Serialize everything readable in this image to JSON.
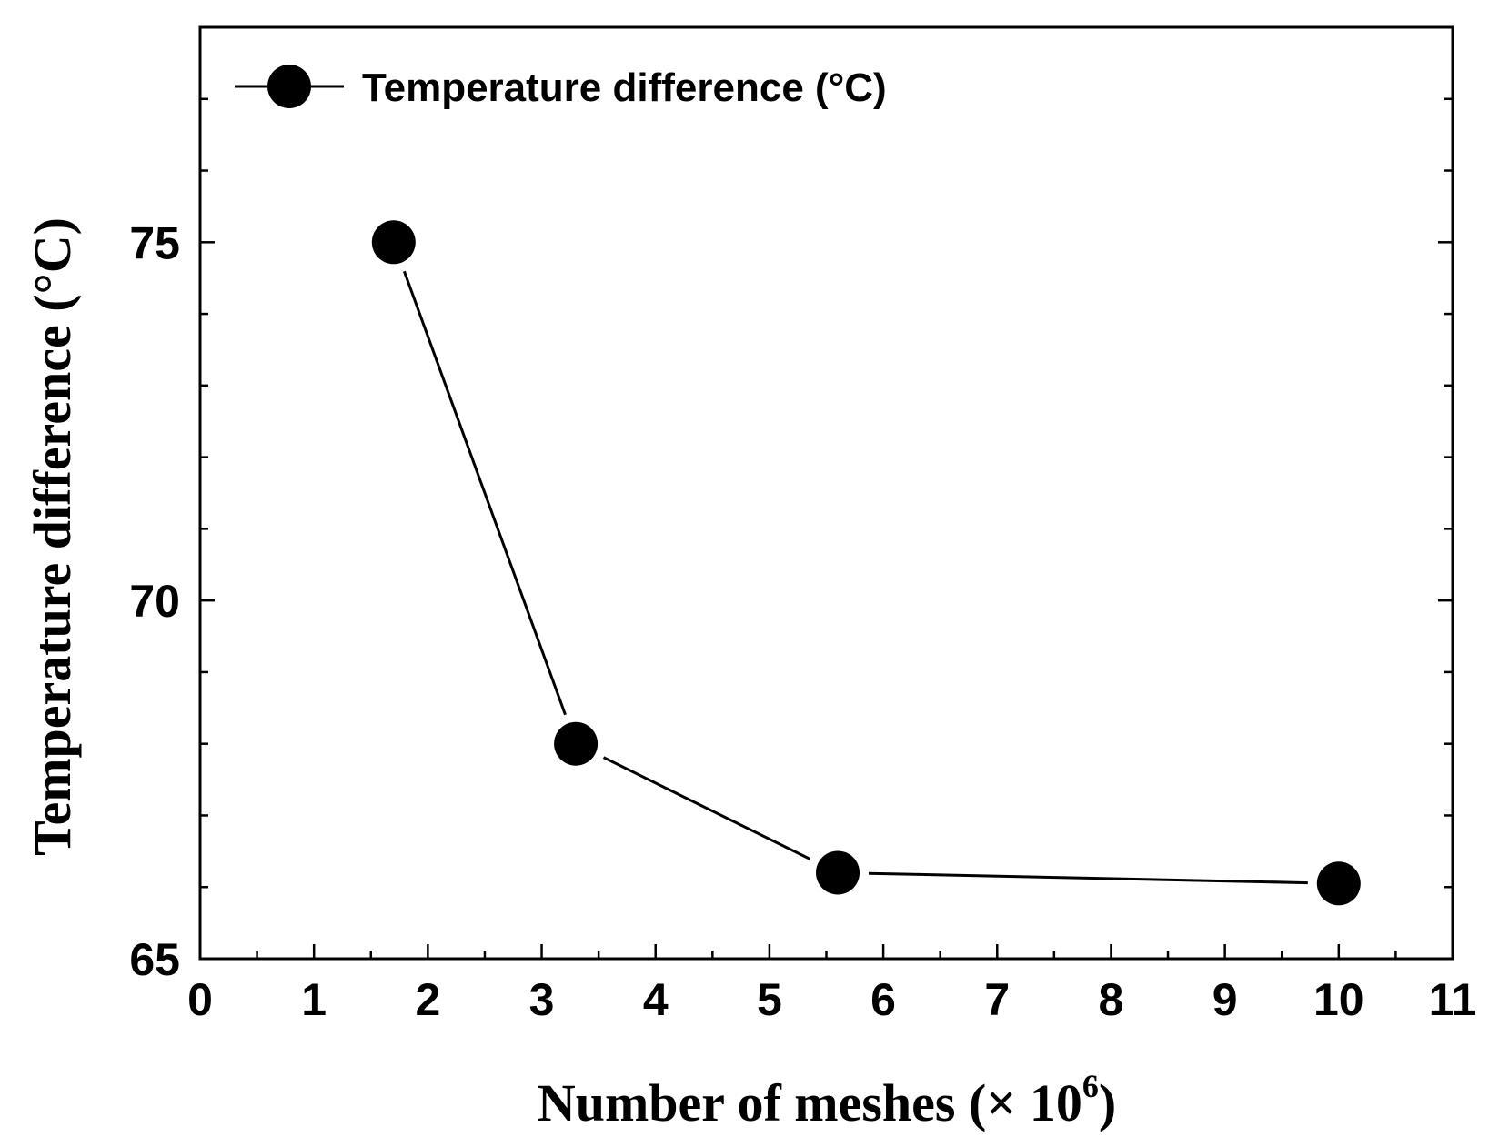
{
  "chart_data": {
    "type": "line",
    "title": "",
    "xlabel": "Number of meshes (× 10",
    "xlabel_superscript": "6",
    "xlabel_suffix": ")",
    "ylabel": "Temperature difference (°C)",
    "xlim": [
      0,
      11
    ],
    "ylim": [
      65,
      78
    ],
    "x_ticks": [
      0,
      1,
      2,
      3,
      4,
      5,
      6,
      7,
      8,
      9,
      10,
      11
    ],
    "x_tick_labels": [
      "0",
      "1",
      "2",
      "3",
      "4",
      "5",
      "6",
      "7",
      "8",
      "9",
      "10",
      "11"
    ],
    "y_ticks": [
      65,
      70,
      75
    ],
    "y_tick_labels": [
      "65",
      "70",
      "75"
    ],
    "grid": false,
    "legend_position": "top-left",
    "series": [
      {
        "name": "Temperature difference (°C)",
        "color": "#000000",
        "marker": "circle",
        "x": [
          1.7,
          3.3,
          5.6,
          10.0
        ],
        "y": [
          75.0,
          68.0,
          66.2,
          66.05
        ]
      }
    ]
  }
}
